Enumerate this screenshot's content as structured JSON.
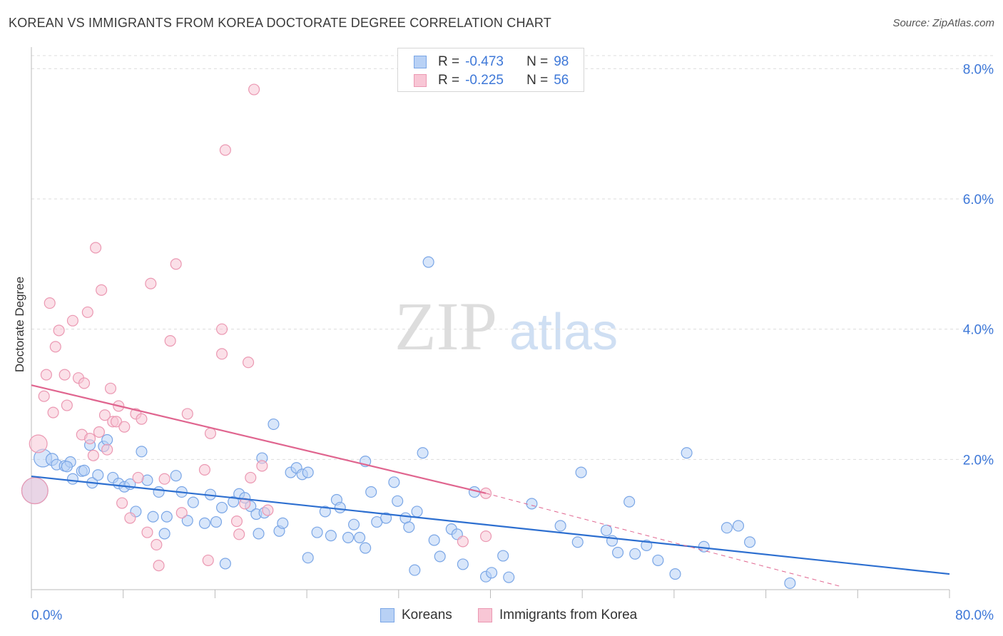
{
  "title": "KOREAN VS IMMIGRANTS FROM KOREA DOCTORATE DEGREE CORRELATION CHART",
  "source": "Source: ZipAtlas.com",
  "watermark": {
    "zip": "ZIP",
    "atlas": "atlas"
  },
  "legend_top": [
    {
      "r_label": "R =",
      "r_value": "-0.473",
      "n_label": "N =",
      "n_value": "98"
    },
    {
      "r_label": "R =",
      "r_value": "-0.225",
      "n_label": "N =",
      "n_value": "56"
    }
  ],
  "legend_bottom": [
    "Koreans",
    "Immigrants from Korea"
  ],
  "colors": {
    "koreans_fill": "#b8d1f5",
    "koreans_stroke": "#7aa6e6",
    "koreans_line": "#2d6fd0",
    "immigrants_fill": "#f8c6d5",
    "immigrants_stroke": "#eb98b2",
    "immigrants_line": "#e0658f",
    "axis_label": "#3e78d8",
    "grid": "#dcdcdc"
  },
  "chart_data": {
    "type": "scatter",
    "title": "KOREAN VS IMMIGRANTS FROM KOREA DOCTORATE DEGREE CORRELATION CHART",
    "xlabel": "",
    "ylabel": "Doctorate Degree",
    "xlim": [
      0,
      80
    ],
    "ylim": [
      0,
      8.2
    ],
    "x_ticks": [
      0,
      80
    ],
    "x_tick_labels": [
      "0.0%",
      "80.0%"
    ],
    "y_ticks": [
      2,
      4,
      6,
      8
    ],
    "y_tick_labels": [
      "2.0%",
      "4.0%",
      "6.0%",
      "8.0%"
    ],
    "grid": "horizontal dashed",
    "legend_position": "top-center",
    "series": [
      {
        "name": "Koreans",
        "color": "#b8d1f5",
        "r": -0.473,
        "n": 98,
        "trend": {
          "x": [
            0,
            80
          ],
          "y": [
            1.74,
            0.24
          ]
        },
        "points": [
          [
            0.3,
            1.52,
            34
          ],
          [
            1.0,
            2.02,
            22
          ],
          [
            1.8,
            2.0,
            14
          ],
          [
            2.2,
            1.92,
            12
          ],
          [
            2.9,
            1.9,
            12
          ],
          [
            3.4,
            1.96,
            12
          ],
          [
            3.1,
            1.89,
            12
          ],
          [
            3.6,
            1.7,
            12
          ],
          [
            4.4,
            1.82,
            12
          ],
          [
            4.6,
            1.83,
            12
          ],
          [
            5.1,
            2.22,
            12
          ],
          [
            5.3,
            1.64,
            12
          ],
          [
            5.8,
            1.76,
            12
          ],
          [
            6.3,
            2.2,
            12
          ],
          [
            6.6,
            2.3,
            12
          ],
          [
            7.1,
            1.72,
            12
          ],
          [
            7.6,
            1.63,
            12
          ],
          [
            8.1,
            1.58,
            12
          ],
          [
            8.6,
            1.62,
            12
          ],
          [
            9.1,
            1.2,
            12
          ],
          [
            9.6,
            2.12,
            12
          ],
          [
            10.1,
            1.68,
            12
          ],
          [
            10.6,
            1.12,
            12
          ],
          [
            11.1,
            1.5,
            12
          ],
          [
            11.6,
            0.86,
            12
          ],
          [
            11.8,
            1.12,
            12
          ],
          [
            12.6,
            1.75,
            12
          ],
          [
            13.1,
            1.5,
            12
          ],
          [
            13.6,
            1.06,
            12
          ],
          [
            14.1,
            1.34,
            12
          ],
          [
            15.1,
            1.02,
            12
          ],
          [
            15.6,
            1.46,
            12
          ],
          [
            16.1,
            1.04,
            12
          ],
          [
            16.6,
            1.26,
            12
          ],
          [
            16.9,
            0.4,
            12
          ],
          [
            17.6,
            1.35,
            12
          ],
          [
            18.1,
            1.47,
            12
          ],
          [
            18.6,
            1.41,
            12
          ],
          [
            19.1,
            1.28,
            12
          ],
          [
            19.6,
            1.16,
            12
          ],
          [
            19.8,
            0.86,
            12
          ],
          [
            20.3,
            1.18,
            12
          ],
          [
            20.1,
            2.02,
            12
          ],
          [
            21.1,
            2.54,
            12
          ],
          [
            21.6,
            0.9,
            12
          ],
          [
            21.9,
            1.02,
            12
          ],
          [
            22.6,
            1.8,
            12
          ],
          [
            23.1,
            1.87,
            12
          ],
          [
            23.6,
            1.77,
            12
          ],
          [
            24.1,
            1.8,
            12
          ],
          [
            24.1,
            0.49,
            12
          ],
          [
            24.9,
            0.88,
            12
          ],
          [
            25.6,
            1.2,
            12
          ],
          [
            26.1,
            0.83,
            12
          ],
          [
            26.6,
            1.38,
            12
          ],
          [
            26.9,
            1.26,
            12
          ],
          [
            27.6,
            0.8,
            12
          ],
          [
            28.1,
            1.0,
            12
          ],
          [
            28.6,
            0.8,
            12
          ],
          [
            29.1,
            0.64,
            12
          ],
          [
            29.6,
            1.5,
            12
          ],
          [
            29.1,
            1.97,
            12
          ],
          [
            30.1,
            1.04,
            12
          ],
          [
            30.9,
            1.1,
            12
          ],
          [
            31.6,
            1.65,
            12
          ],
          [
            31.9,
            1.36,
            12
          ],
          [
            32.6,
            1.1,
            12
          ],
          [
            32.9,
            0.96,
            12
          ],
          [
            33.6,
            1.2,
            12
          ],
          [
            33.4,
            0.3,
            12
          ],
          [
            34.1,
            2.1,
            12
          ],
          [
            34.6,
            5.03,
            12
          ],
          [
            35.1,
            0.76,
            12
          ],
          [
            35.6,
            0.51,
            12
          ],
          [
            36.6,
            0.93,
            12
          ],
          [
            37.1,
            0.85,
            12
          ],
          [
            37.6,
            0.39,
            12
          ],
          [
            38.6,
            1.5,
            12
          ],
          [
            39.6,
            0.2,
            12
          ],
          [
            40.1,
            0.26,
            12
          ],
          [
            41.1,
            0.52,
            12
          ],
          [
            41.6,
            0.19,
            12
          ],
          [
            43.6,
            1.32,
            12
          ],
          [
            46.1,
            0.98,
            12
          ],
          [
            47.6,
            0.73,
            12
          ],
          [
            47.9,
            1.8,
            12
          ],
          [
            50.1,
            0.91,
            12
          ],
          [
            50.6,
            0.75,
            12
          ],
          [
            51.1,
            0.57,
            12
          ],
          [
            52.1,
            1.35,
            12
          ],
          [
            52.6,
            0.55,
            12
          ],
          [
            53.6,
            0.68,
            12
          ],
          [
            54.6,
            0.45,
            12
          ],
          [
            56.1,
            0.24,
            12
          ],
          [
            57.1,
            2.1,
            12
          ],
          [
            58.6,
            0.66,
            12
          ],
          [
            60.6,
            0.95,
            12
          ],
          [
            61.6,
            0.98,
            12
          ],
          [
            62.6,
            0.73,
            12
          ],
          [
            66.1,
            0.1,
            12
          ]
        ]
      },
      {
        "name": "Immigrants from Korea",
        "color": "#f8c6d5",
        "r": -0.225,
        "n": 56,
        "trend_solid": {
          "x": [
            0,
            39.6
          ],
          "y": [
            3.14,
            1.48
          ]
        },
        "trend_dashed": {
          "x": [
            39.6,
            70.5
          ],
          "y": [
            1.48,
            0.05
          ]
        },
        "points": [
          [
            0.3,
            1.52,
            34
          ],
          [
            0.6,
            2.24,
            22
          ],
          [
            1.1,
            2.97,
            12
          ],
          [
            1.3,
            3.3,
            12
          ],
          [
            1.6,
            4.4,
            12
          ],
          [
            1.9,
            2.72,
            12
          ],
          [
            2.1,
            3.73,
            12
          ],
          [
            2.4,
            3.98,
            12
          ],
          [
            2.9,
            3.3,
            12
          ],
          [
            3.1,
            2.83,
            12
          ],
          [
            3.6,
            4.13,
            12
          ],
          [
            4.1,
            3.25,
            12
          ],
          [
            4.4,
            2.38,
            12
          ],
          [
            4.6,
            3.17,
            12
          ],
          [
            4.9,
            4.26,
            12
          ],
          [
            5.1,
            2.32,
            12
          ],
          [
            5.4,
            2.06,
            12
          ],
          [
            5.6,
            5.25,
            12
          ],
          [
            5.9,
            2.42,
            12
          ],
          [
            6.1,
            4.6,
            12
          ],
          [
            6.4,
            2.68,
            12
          ],
          [
            6.6,
            2.15,
            12
          ],
          [
            6.9,
            3.09,
            12
          ],
          [
            7.1,
            2.58,
            12
          ],
          [
            7.4,
            2.58,
            12
          ],
          [
            7.6,
            2.82,
            12
          ],
          [
            7.9,
            1.33,
            12
          ],
          [
            8.1,
            2.5,
            12
          ],
          [
            8.6,
            1.1,
            12
          ],
          [
            9.1,
            2.7,
            12
          ],
          [
            9.3,
            1.72,
            12
          ],
          [
            9.6,
            2.62,
            12
          ],
          [
            10.1,
            0.88,
            12
          ],
          [
            10.4,
            4.7,
            12
          ],
          [
            10.9,
            0.69,
            12
          ],
          [
            11.1,
            0.37,
            12
          ],
          [
            11.6,
            1.7,
            12
          ],
          [
            12.1,
            3.82,
            12
          ],
          [
            12.6,
            5.0,
            12
          ],
          [
            13.1,
            1.18,
            12
          ],
          [
            13.6,
            2.7,
            12
          ],
          [
            15.1,
            1.84,
            12
          ],
          [
            15.4,
            0.45,
            12
          ],
          [
            15.6,
            2.4,
            12
          ],
          [
            16.6,
            3.62,
            12
          ],
          [
            16.6,
            4.0,
            12
          ],
          [
            16.9,
            6.75,
            12
          ],
          [
            17.9,
            1.05,
            12
          ],
          [
            18.1,
            0.85,
            12
          ],
          [
            18.6,
            1.32,
            12
          ],
          [
            18.9,
            3.49,
            12
          ],
          [
            19.1,
            1.72,
            12
          ],
          [
            19.4,
            7.68,
            12
          ],
          [
            20.1,
            1.9,
            12
          ],
          [
            20.6,
            1.22,
            12
          ],
          [
            37.6,
            0.74,
            12
          ],
          [
            39.6,
            0.82,
            12
          ],
          [
            39.6,
            1.48,
            12
          ]
        ]
      }
    ]
  }
}
